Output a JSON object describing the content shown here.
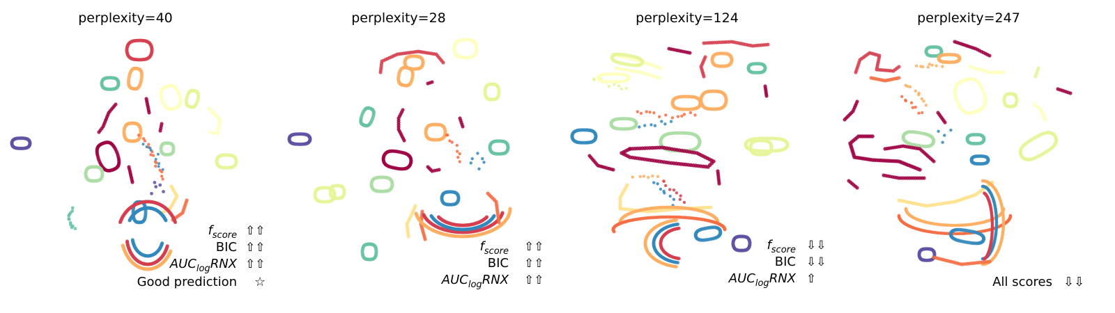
{
  "chart_data": [
    {
      "type": "scatter",
      "title": "perplexity=40",
      "scores": [
        {
          "label": "f",
          "sub": "score",
          "italic": true,
          "arrows": "⇧⇧"
        },
        {
          "label": "BIC",
          "sub": "",
          "italic": false,
          "arrows": "⇧⇧"
        },
        {
          "label": "AUC",
          "sub": "log",
          "suffix": "RNX",
          "italic": true,
          "arrows": "⇧⇧"
        }
      ],
      "verdict": {
        "text": "Good prediction",
        "mark": "☆"
      }
    },
    {
      "type": "scatter",
      "title": "perplexity=28",
      "scores": [
        {
          "label": "f",
          "sub": "score",
          "italic": true,
          "arrows": "⇧⇧"
        },
        {
          "label": "BIC",
          "sub": "",
          "italic": false,
          "arrows": "⇧⇧"
        },
        {
          "label": "AUC",
          "sub": "log",
          "suffix": "RNX",
          "italic": true,
          "arrows": "⇧⇧"
        }
      ],
      "verdict": null
    },
    {
      "type": "scatter",
      "title": "perplexity=124",
      "scores": [
        {
          "label": "f",
          "sub": "score",
          "italic": true,
          "arrows": "⇩⇩"
        },
        {
          "label": "BIC",
          "sub": "",
          "italic": false,
          "arrows": "⇩⇩"
        },
        {
          "label": "AUC",
          "sub": "log",
          "suffix": "RNX",
          "italic": true,
          "arrows": "⇧"
        }
      ],
      "verdict": null
    },
    {
      "type": "scatter",
      "title": "perplexity=247",
      "scores": [],
      "verdict": {
        "text": "All scores",
        "mark": "⇩⇩"
      }
    }
  ],
  "palette": [
    "#9e0142",
    "#d53e4f",
    "#f46d43",
    "#fdae61",
    "#fee08b",
    "#ffffbf",
    "#e6f598",
    "#abdda4",
    "#66c2a5",
    "#3288bd",
    "#5e4fa2"
  ]
}
